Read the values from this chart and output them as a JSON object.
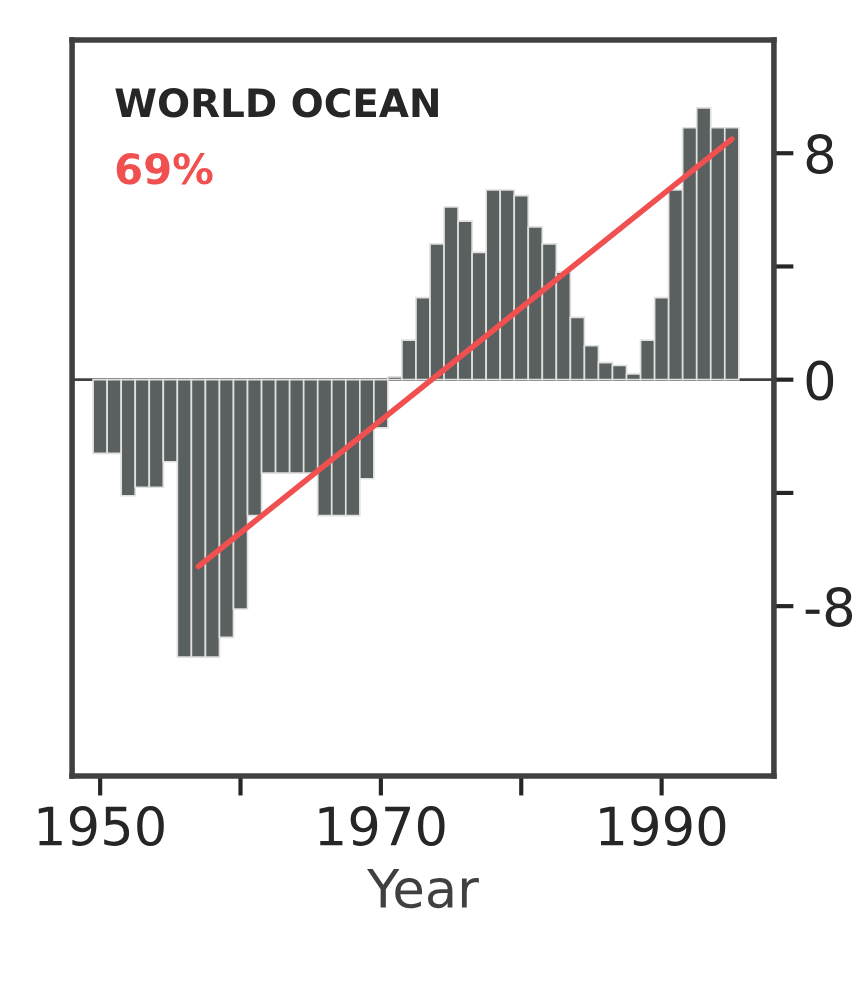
{
  "chart_data": {
    "type": "bar",
    "title": "WORLD OCEAN",
    "xlabel": "Year",
    "x": [
      1950,
      1951,
      1952,
      1953,
      1954,
      1955,
      1956,
      1957,
      1958,
      1959,
      1960,
      1961,
      1962,
      1963,
      1964,
      1965,
      1966,
      1967,
      1968,
      1969,
      1970,
      1971,
      1972,
      1973,
      1974,
      1975,
      1976,
      1977,
      1978,
      1979,
      1980,
      1981,
      1982,
      1983,
      1984,
      1985,
      1986,
      1987,
      1988,
      1989,
      1990,
      1991,
      1992,
      1993,
      1994,
      1995
    ],
    "series": [
      {
        "color": "#5a605f",
        "values": [
          -2.6,
          -2.6,
          -4.1,
          -3.8,
          -3.8,
          -2.9,
          -9.8,
          -9.8,
          -9.8,
          -9.1,
          -8.1,
          -4.8,
          -3.3,
          -3.3,
          -3.3,
          -3.3,
          -4.8,
          -4.8,
          -4.8,
          -3.5,
          -1.7,
          0.1,
          1.4,
          2.9,
          4.8,
          6.1,
          5.6,
          4.5,
          6.7,
          6.7,
          6.5,
          5.4,
          4.8,
          3.8,
          2.2,
          1.2,
          0.6,
          0.5,
          0.2,
          1.4,
          2.9,
          6.7,
          8.9,
          9.6,
          8.9,
          8.9
        ]
      },
      {
        "type": "line",
        "name": "69%",
        "color": "#f05050",
        "x": [
          1957,
          1995
        ],
        "values": [
          -6.6,
          8.5
        ]
      }
    ],
    "xlim": [
      1948,
      1998
    ],
    "ylim": [
      -14,
      12
    ],
    "xticks": [
      1950,
      {
        "value": 1960,
        "label": null
      },
      1970,
      {
        "value": 1980,
        "label": null
      },
      1990
    ],
    "yticks": [
      8,
      {
        "value": 4,
        "label": null
      },
      0,
      {
        "value": -4,
        "label": null
      },
      -8
    ],
    "ref_lines": [
      {
        "axis": "y",
        "value": 0,
        "color": "#404040"
      }
    ],
    "grid": false,
    "legend": false
  }
}
